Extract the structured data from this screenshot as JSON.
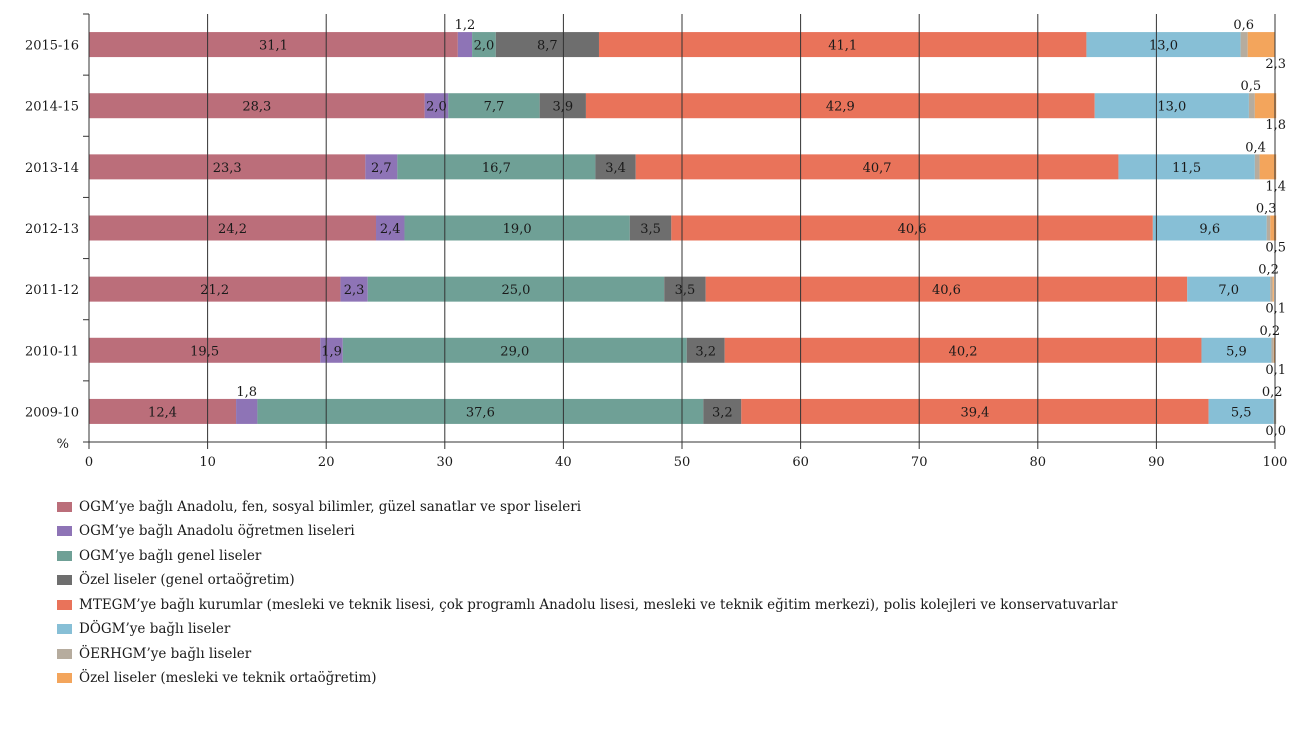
{
  "chart_data": {
    "type": "bar",
    "orientation": "horizontal",
    "stacked": true,
    "y_unit": "%",
    "categories": [
      "2015-16",
      "2014-15",
      "2013-14",
      "2012-13",
      "2011-12",
      "2010-11",
      "2009-10"
    ],
    "xlim": [
      0,
      100
    ],
    "x_ticks": [
      0,
      10,
      20,
      30,
      40,
      50,
      60,
      70,
      80,
      90,
      100
    ],
    "grid": false,
    "legend_position": "bottom",
    "series": [
      {
        "name": "OGM’ye bağlı Anadolu, fen, sosyal bilimler, güzel sanatlar ve spor liseleri",
        "color": "#BB6E7A",
        "values": [
          31.1,
          28.3,
          23.3,
          24.2,
          21.2,
          19.5,
          12.4
        ],
        "labels": [
          "31,1",
          "28,3",
          "23,3",
          "24,2",
          "21,2",
          "19,5",
          "12,4"
        ]
      },
      {
        "name": "OGM’ye bağlı Anadolu öğretmen liseleri",
        "color": "#8E74B6",
        "values": [
          1.2,
          2.0,
          2.7,
          2.4,
          2.3,
          1.9,
          1.8
        ],
        "labels": [
          "1,2",
          "2,0",
          "2,7",
          "2,4",
          "2,3",
          "1,9",
          "1,8"
        ]
      },
      {
        "name": "OGM’ye bağlı genel liseler",
        "color": "#6FA096",
        "values": [
          2.0,
          7.7,
          16.7,
          19.0,
          25.0,
          29.0,
          37.6
        ],
        "labels": [
          "2,0",
          "7,7",
          "16,7",
          "19,0",
          "25,0",
          "29,0",
          "37,6"
        ]
      },
      {
        "name": "Özel liseler (genel ortaöğretim)",
        "color": "#6E6E6E",
        "values": [
          8.7,
          3.9,
          3.4,
          3.5,
          3.5,
          3.2,
          3.2
        ],
        "labels": [
          "8,7",
          "3,9",
          "3,4",
          "3,5",
          "3,5",
          "3,2",
          "3,2"
        ]
      },
      {
        "name": "MTEGM’ye bağlı kurumlar (mesleki ve teknik lisesi, çok programlı Anadolu lisesi, mesleki ve teknik eğitim merkezi), polis kolejleri ve konservatuvarlar",
        "color": "#E9735A",
        "values": [
          41.1,
          42.9,
          40.7,
          40.6,
          40.6,
          40.2,
          39.4
        ],
        "labels": [
          "41,1",
          "42,9",
          "40,7",
          "40,6",
          "40,6",
          "40,2",
          "39,4"
        ]
      },
      {
        "name": "DÖGM’ye bağlı liseler",
        "color": "#87BFD6",
        "values": [
          13.0,
          13.0,
          11.5,
          9.6,
          7.0,
          5.9,
          5.5
        ],
        "labels": [
          "13,0",
          "13,0",
          "11,5",
          "9,6",
          "7,0",
          "5,9",
          "5,5"
        ]
      },
      {
        "name": "ÖERHGM’ye bağlı liseler",
        "color": "#B6AC9E",
        "values": [
          0.6,
          0.5,
          0.4,
          0.3,
          0.2,
          0.2,
          0.2
        ],
        "labels": [
          "0,6",
          "0,5",
          "0,4",
          "0,3",
          "0,2",
          "0,2",
          "0,2"
        ]
      },
      {
        "name": "Özel liseler (mesleki ve teknik ortaöğretim)",
        "color": "#F3A55C",
        "values": [
          2.3,
          1.8,
          1.4,
          0.5,
          0.1,
          0.1,
          0.0
        ],
        "labels": [
          "2,3",
          "1,8",
          "1,4",
          "0,5",
          "0,1",
          "0,1",
          "0,0"
        ]
      }
    ]
  }
}
